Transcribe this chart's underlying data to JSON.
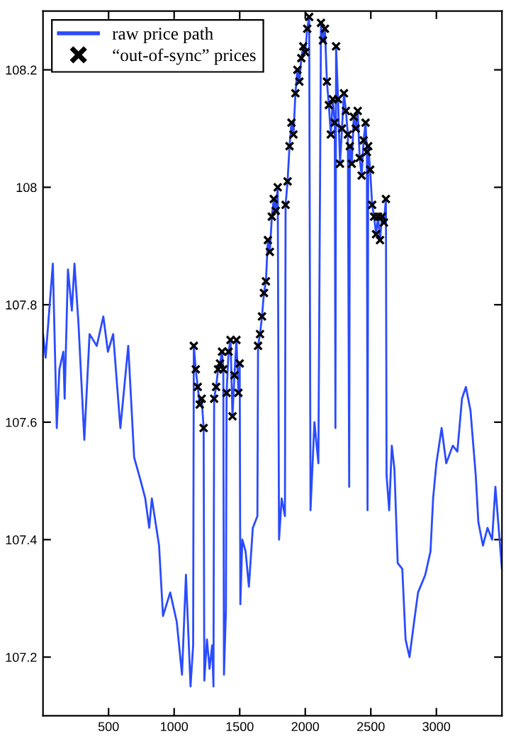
{
  "chart_data": {
    "type": "line",
    "xlim": [
      0,
      3500
    ],
    "ylim": [
      107.1,
      108.3
    ],
    "xticks": [
      500,
      1000,
      1500,
      2000,
      2500,
      3000
    ],
    "yticks": [
      107.2,
      107.4,
      107.6,
      107.8,
      108,
      108.2
    ],
    "grid": false,
    "legend": "top left",
    "series": [
      {
        "name": "raw price path",
        "color": "#2a4bff",
        "marker": "none",
        "line_style": "solid",
        "x": [
          0,
          20,
          75,
          105,
          125,
          155,
          165,
          190,
          220,
          240,
          270,
          315,
          355,
          410,
          460,
          495,
          535,
          590,
          650,
          695,
          745,
          780,
          810,
          830,
          885,
          915,
          970,
          1020,
          1060,
          1090,
          1125,
          1145,
          1150,
          1165,
          1180,
          1195,
          1210,
          1225,
          1230,
          1250,
          1270,
          1290,
          1300,
          1305,
          1320,
          1335,
          1350,
          1365,
          1375,
          1380,
          1395,
          1400,
          1415,
          1430,
          1445,
          1460,
          1475,
          1490,
          1500,
          1505,
          1520,
          1545,
          1570,
          1600,
          1635,
          1640,
          1655,
          1670,
          1685,
          1700,
          1715,
          1730,
          1745,
          1760,
          1775,
          1790,
          1800,
          1820,
          1845,
          1850,
          1865,
          1880,
          1895,
          1910,
          1925,
          1940,
          1955,
          1970,
          1985,
          2000,
          2015,
          2030,
          2040,
          2070,
          2100,
          2120,
          2135,
          2150,
          2165,
          2180,
          2195,
          2210,
          2225,
          2230,
          2235,
          2250,
          2265,
          2280,
          2295,
          2310,
          2325,
          2335,
          2340,
          2355,
          2370,
          2385,
          2400,
          2415,
          2430,
          2445,
          2460,
          2470,
          2475,
          2480,
          2495,
          2510,
          2525,
          2540,
          2555,
          2570,
          2585,
          2600,
          2615,
          2620,
          2640,
          2660,
          2680,
          2705,
          2740,
          2765,
          2795,
          2830,
          2860,
          2915,
          2955,
          2975,
          3000,
          3040,
          3075,
          3125,
          3160,
          3195,
          3225,
          3260,
          3300,
          3320,
          3355,
          3390,
          3425,
          3450,
          3500
        ],
        "values": [
          107.75,
          107.71,
          107.87,
          107.59,
          107.69,
          107.72,
          107.64,
          107.86,
          107.79,
          107.87,
          107.77,
          107.57,
          107.75,
          107.73,
          107.78,
          107.72,
          107.75,
          107.59,
          107.73,
          107.54,
          107.5,
          107.47,
          107.42,
          107.47,
          107.39,
          107.27,
          107.31,
          107.26,
          107.17,
          107.34,
          107.15,
          107.22,
          107.73,
          107.69,
          107.66,
          107.63,
          107.64,
          107.59,
          107.16,
          107.23,
          107.18,
          107.22,
          107.15,
          107.64,
          107.66,
          107.69,
          107.7,
          107.72,
          107.69,
          107.17,
          107.28,
          107.65,
          107.72,
          107.74,
          107.61,
          107.68,
          107.74,
          107.65,
          107.7,
          107.29,
          107.4,
          107.38,
          107.32,
          107.42,
          107.44,
          107.73,
          107.75,
          107.78,
          107.82,
          107.84,
          107.91,
          107.89,
          107.95,
          107.98,
          107.96,
          108.0,
          107.4,
          107.47,
          107.44,
          107.97,
          108.01,
          108.07,
          108.11,
          108.09,
          108.16,
          108.2,
          108.18,
          108.22,
          108.24,
          108.23,
          108.27,
          108.29,
          107.45,
          107.6,
          107.53,
          108.28,
          108.25,
          108.27,
          108.18,
          108.14,
          108.09,
          108.15,
          108.11,
          107.59,
          108.24,
          108.15,
          108.04,
          108.1,
          108.16,
          108.13,
          108.09,
          107.49,
          108.07,
          108.04,
          108.12,
          108.1,
          108.13,
          108.05,
          108.02,
          108.08,
          108.11,
          108.06,
          107.45,
          108.07,
          108.03,
          107.97,
          107.95,
          107.92,
          107.95,
          107.91,
          107.95,
          107.94,
          107.98,
          107.51,
          107.45,
          107.56,
          107.52,
          107.36,
          107.35,
          107.23,
          107.2,
          107.26,
          107.31,
          107.34,
          107.38,
          107.47,
          107.53,
          107.59,
          107.53,
          107.56,
          107.55,
          107.64,
          107.66,
          107.62,
          107.51,
          107.43,
          107.39,
          107.42,
          107.4,
          107.49,
          107.35
        ]
      },
      {
        "name": "“out-of-sync” prices",
        "type": "scatter",
        "color": "#000000",
        "marker": "cross",
        "x": [
          1150,
          1165,
          1180,
          1195,
          1210,
          1225,
          1305,
          1320,
          1335,
          1350,
          1365,
          1375,
          1400,
          1415,
          1430,
          1445,
          1460,
          1475,
          1490,
          1500,
          1640,
          1655,
          1670,
          1685,
          1700,
          1715,
          1730,
          1745,
          1760,
          1775,
          1790,
          1850,
          1865,
          1880,
          1895,
          1910,
          1925,
          1940,
          1955,
          1970,
          1985,
          2000,
          2015,
          2030,
          2120,
          2135,
          2150,
          2165,
          2180,
          2195,
          2210,
          2225,
          2235,
          2250,
          2265,
          2280,
          2295,
          2310,
          2325,
          2340,
          2355,
          2370,
          2385,
          2400,
          2415,
          2430,
          2445,
          2460,
          2470,
          2480,
          2495,
          2510,
          2525,
          2540,
          2555,
          2570,
          2585,
          2600,
          2615
        ],
        "values": [
          107.73,
          107.69,
          107.66,
          107.63,
          107.64,
          107.59,
          107.64,
          107.66,
          107.69,
          107.7,
          107.72,
          107.69,
          107.65,
          107.72,
          107.74,
          107.61,
          107.68,
          107.74,
          107.65,
          107.7,
          107.73,
          107.75,
          107.78,
          107.82,
          107.84,
          107.91,
          107.89,
          107.95,
          107.98,
          107.96,
          108.0,
          107.97,
          108.01,
          108.07,
          108.11,
          108.09,
          108.16,
          108.2,
          108.18,
          108.22,
          108.24,
          108.23,
          108.27,
          108.29,
          108.28,
          108.25,
          108.27,
          108.18,
          108.14,
          108.09,
          108.15,
          108.11,
          108.24,
          108.15,
          108.04,
          108.1,
          108.16,
          108.13,
          108.09,
          108.07,
          108.04,
          108.12,
          108.1,
          108.13,
          108.05,
          108.02,
          108.08,
          108.11,
          108.06,
          108.07,
          108.03,
          107.97,
          107.95,
          107.92,
          107.95,
          107.91,
          107.95,
          107.94,
          107.98
        ]
      }
    ]
  }
}
